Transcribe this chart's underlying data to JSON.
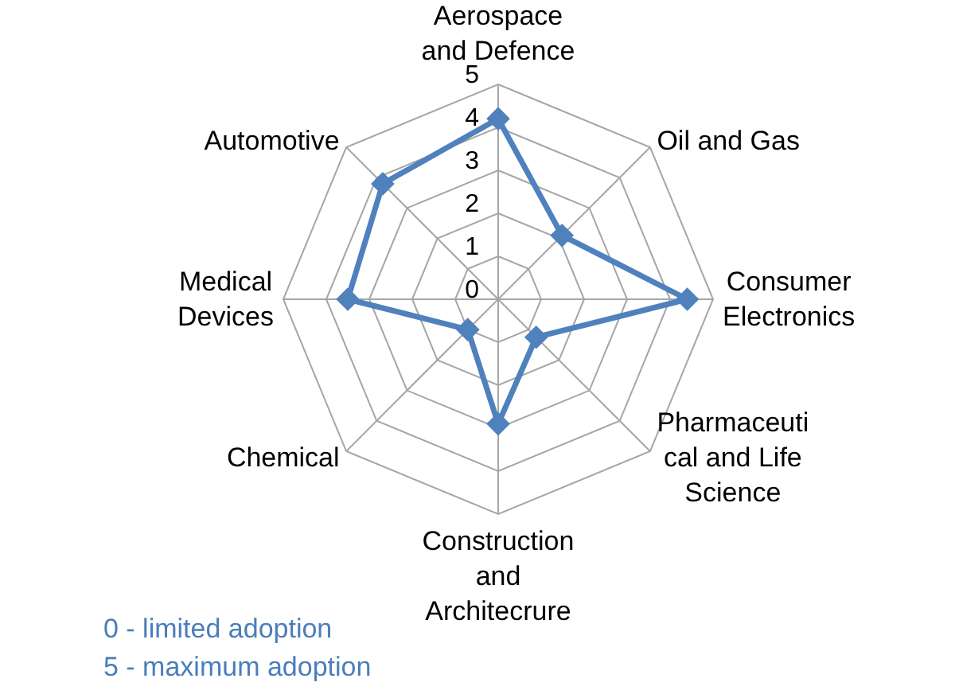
{
  "chart_data": {
    "type": "radar",
    "categories": [
      "Aerospace and Defence",
      "Oil and Gas",
      "Consumer Electronics",
      "Pharmaceutical and Life Science",
      "Construction and Architecrure",
      "Chemical",
      "Medical Devices",
      "Automotive"
    ],
    "series": [
      {
        "color": "#4f81bd",
        "values": [
          4.2,
          2.1,
          4.4,
          1.25,
          2.9,
          1.0,
          3.5,
          3.8
        ]
      }
    ],
    "ylim": [
      0,
      5
    ],
    "yticks": [
      0,
      1,
      2,
      3,
      4,
      5
    ],
    "grid": true,
    "marker": "diamond",
    "line_style": "solid",
    "annotations": [
      "0 - limited adoption",
      "5 - maximum adoption"
    ]
  }
}
